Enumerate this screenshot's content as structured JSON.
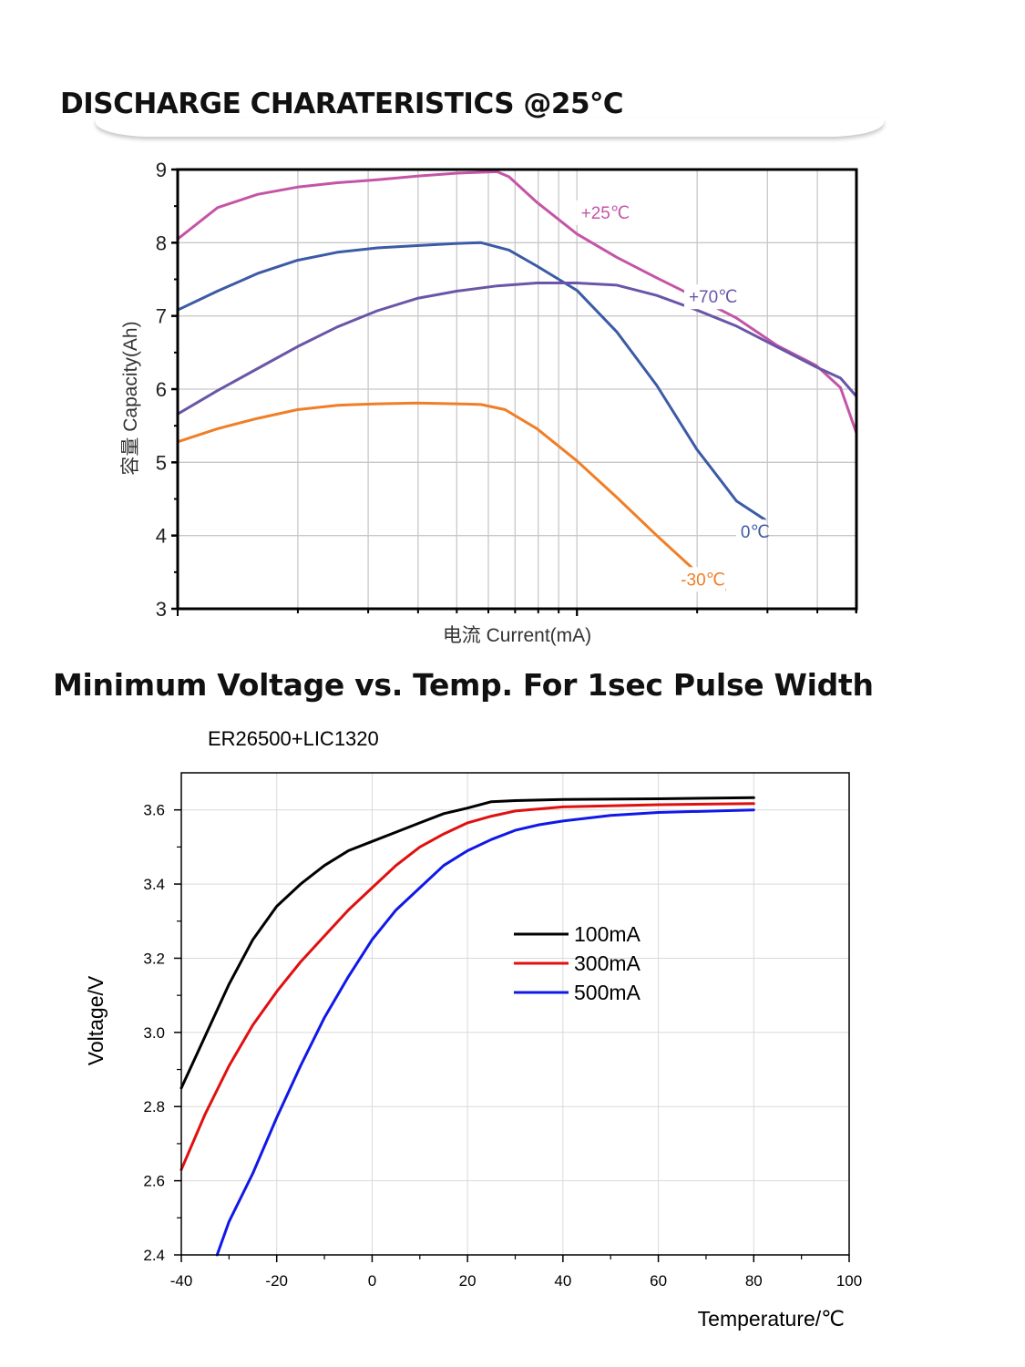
{
  "headings": {
    "discharge": "DISCHARGE CHARATERISTICS @25℃",
    "min_voltage": "Minimum Voltage vs. Temp. For 1sec Pulse Width"
  },
  "chart_data": [
    {
      "type": "line",
      "xscale": "log",
      "x_tick_labels": [],
      "xlabel": "电流 Current(mA)",
      "ylabel": "容量 Capacity(Ah)",
      "ylim": [
        3,
        9
      ],
      "yticks": [
        3,
        4,
        5,
        6,
        7,
        8,
        9
      ],
      "grid": true,
      "series": [
        {
          "name": "+25℃",
          "color": "#c455a6",
          "points": [
            [
              0,
              8.05
            ],
            [
              0.1,
              8.48
            ],
            [
              0.2,
              8.66
            ],
            [
              0.3,
              8.76
            ],
            [
              0.4,
              8.82
            ],
            [
              0.5,
              8.86
            ],
            [
              0.6,
              8.91
            ],
            [
              0.7,
              8.95
            ],
            [
              0.8,
              8.97
            ],
            [
              0.83,
              8.9
            ],
            [
              0.9,
              8.55
            ],
            [
              1.0,
              8.12
            ],
            [
              1.1,
              7.8
            ],
            [
              1.2,
              7.52
            ],
            [
              1.3,
              7.25
            ],
            [
              1.4,
              6.97
            ],
            [
              1.5,
              6.6
            ],
            [
              1.6,
              6.32
            ],
            [
              1.66,
              6.02
            ],
            [
              1.7,
              5.4
            ]
          ]
        },
        {
          "name": "0℃",
          "color": "#3c5aa6",
          "points": [
            [
              0,
              7.08
            ],
            [
              0.1,
              7.34
            ],
            [
              0.2,
              7.58
            ],
            [
              0.3,
              7.76
            ],
            [
              0.4,
              7.87
            ],
            [
              0.5,
              7.93
            ],
            [
              0.6,
              7.96
            ],
            [
              0.7,
              7.99
            ],
            [
              0.76,
              8.0
            ],
            [
              0.83,
              7.9
            ],
            [
              0.9,
              7.68
            ],
            [
              1.0,
              7.35
            ],
            [
              1.1,
              6.78
            ],
            [
              1.2,
              6.05
            ],
            [
              1.3,
              5.18
            ],
            [
              1.4,
              4.47
            ],
            [
              1.47,
              4.22
            ]
          ]
        },
        {
          "name": "+70℃",
          "color": "#6a56a8",
          "points": [
            [
              0,
              5.66
            ],
            [
              0.1,
              5.98
            ],
            [
              0.2,
              6.28
            ],
            [
              0.3,
              6.58
            ],
            [
              0.4,
              6.85
            ],
            [
              0.5,
              7.07
            ],
            [
              0.6,
              7.24
            ],
            [
              0.7,
              7.34
            ],
            [
              0.8,
              7.41
            ],
            [
              0.9,
              7.45
            ],
            [
              1.0,
              7.45
            ],
            [
              1.1,
              7.42
            ],
            [
              1.2,
              7.28
            ],
            [
              1.3,
              7.08
            ],
            [
              1.4,
              6.86
            ],
            [
              1.5,
              6.58
            ],
            [
              1.6,
              6.3
            ],
            [
              1.66,
              6.15
            ],
            [
              1.7,
              5.9
            ]
          ]
        },
        {
          "name": "-30℃",
          "color": "#f07e26",
          "points": [
            [
              0,
              5.28
            ],
            [
              0.1,
              5.46
            ],
            [
              0.2,
              5.6
            ],
            [
              0.3,
              5.72
            ],
            [
              0.4,
              5.78
            ],
            [
              0.5,
              5.8
            ],
            [
              0.6,
              5.81
            ],
            [
              0.7,
              5.8
            ],
            [
              0.76,
              5.79
            ],
            [
              0.82,
              5.72
            ],
            [
              0.9,
              5.46
            ],
            [
              1.0,
              5.02
            ],
            [
              1.1,
              4.52
            ],
            [
              1.2,
              4.0
            ],
            [
              1.3,
              3.5
            ],
            [
              1.37,
              3.26
            ]
          ]
        }
      ]
    },
    {
      "type": "line",
      "title": "ER26500+LIC1320",
      "xlabel": "Temperature/℃",
      "ylabel": "Voltage/V",
      "xlim": [
        -40,
        100
      ],
      "ylim": [
        2.4,
        3.7
      ],
      "xticks": [
        -40,
        -20,
        0,
        20,
        40,
        60,
        80,
        100
      ],
      "yticks": [
        2.4,
        2.6,
        2.8,
        3.0,
        3.2,
        3.4,
        3.6
      ],
      "grid": true,
      "legend": "center",
      "series": [
        {
          "name": "100mA",
          "color": "#000000",
          "points": [
            [
              -40,
              2.85
            ],
            [
              -35,
              2.99
            ],
            [
              -30,
              3.13
            ],
            [
              -25,
              3.25
            ],
            [
              -20,
              3.34
            ],
            [
              -15,
              3.4
            ],
            [
              -10,
              3.45
            ],
            [
              -5,
              3.49
            ],
            [
              0,
              3.515
            ],
            [
              5,
              3.54
            ],
            [
              10,
              3.565
            ],
            [
              15,
              3.59
            ],
            [
              20,
              3.605
            ],
            [
              25,
              3.622
            ],
            [
              30,
              3.625
            ],
            [
              40,
              3.628
            ],
            [
              60,
              3.63
            ],
            [
              80,
              3.633
            ]
          ]
        },
        {
          "name": "300mA",
          "color": "#e01010",
          "points": [
            [
              -40,
              2.63
            ],
            [
              -35,
              2.78
            ],
            [
              -30,
              2.91
            ],
            [
              -25,
              3.02
            ],
            [
              -20,
              3.11
            ],
            [
              -15,
              3.19
            ],
            [
              -10,
              3.26
            ],
            [
              -5,
              3.33
            ],
            [
              0,
              3.39
            ],
            [
              5,
              3.45
            ],
            [
              10,
              3.5
            ],
            [
              15,
              3.535
            ],
            [
              20,
              3.565
            ],
            [
              25,
              3.583
            ],
            [
              30,
              3.597
            ],
            [
              40,
              3.608
            ],
            [
              60,
              3.614
            ],
            [
              80,
              3.617
            ]
          ]
        },
        {
          "name": "500mA",
          "color": "#1018e8",
          "points": [
            [
              -32.5,
              2.4
            ],
            [
              -30,
              2.49
            ],
            [
              -25,
              2.62
            ],
            [
              -20,
              2.77
            ],
            [
              -15,
              2.91
            ],
            [
              -10,
              3.04
            ],
            [
              -5,
              3.15
            ],
            [
              0,
              3.25
            ],
            [
              5,
              3.33
            ],
            [
              10,
              3.39
            ],
            [
              15,
              3.45
            ],
            [
              20,
              3.49
            ],
            [
              25,
              3.52
            ],
            [
              30,
              3.545
            ],
            [
              35,
              3.56
            ],
            [
              40,
              3.57
            ],
            [
              50,
              3.585
            ],
            [
              60,
              3.593
            ],
            [
              80,
              3.6
            ]
          ]
        }
      ]
    }
  ]
}
